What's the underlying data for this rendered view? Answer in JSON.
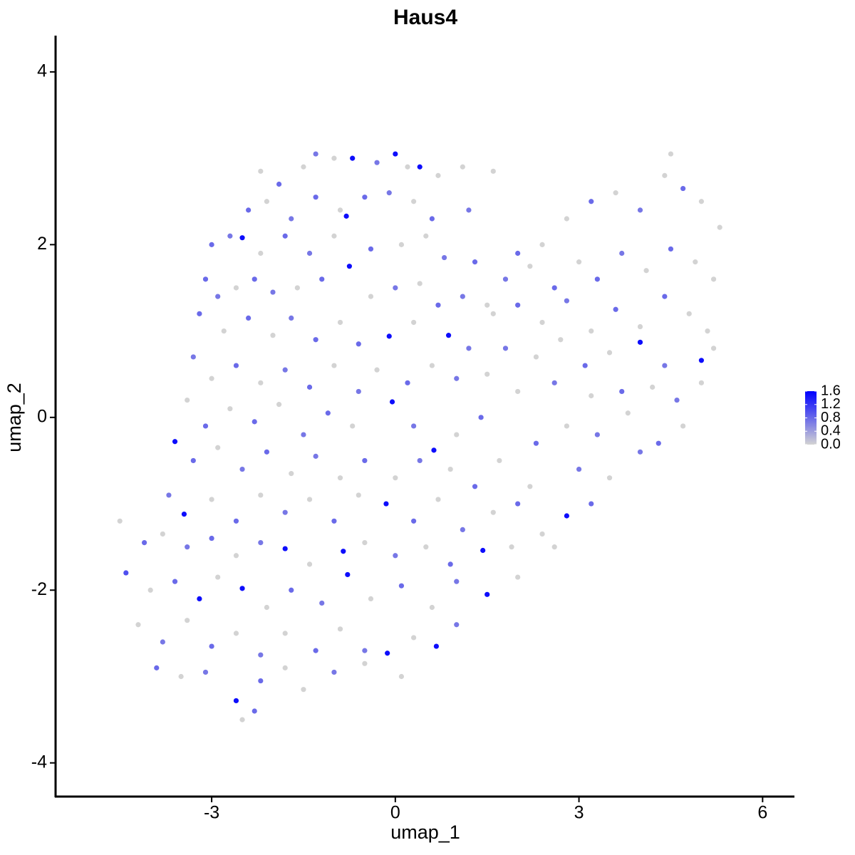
{
  "chart_data": {
    "type": "scatter",
    "title": "Haus4",
    "x_label": "umap_1",
    "y_label": "umap_2",
    "xlim": [
      -5.55,
      6.52
    ],
    "ylim": [
      -4.39,
      4.42
    ],
    "xticks": [
      -3,
      0,
      3,
      6
    ],
    "yticks": [
      -4,
      -2,
      0,
      2,
      4
    ],
    "color_low": "#d3d3d3",
    "color_high": "#0000ff",
    "colorlim": [
      0,
      1.6
    ],
    "colorbar_ticks": [
      {
        "value": 0,
        "label": "0.0"
      },
      0.4,
      0.8,
      1.2,
      1.6
    ],
    "x": [
      -2.2,
      -1.9,
      -1.5,
      -1.3,
      -1.0,
      -0.7,
      -0.3,
      0,
      0.2,
      0.4,
      0.7,
      1.1,
      1.6,
      -2.4,
      -2.1,
      -1.7,
      -1.3,
      -0.9,
      -0.5,
      -0.1,
      0.3,
      0.6,
      1.2,
      -3.0,
      -2.7,
      -2.5,
      -2.2,
      -1.8,
      -1.4,
      -1.0,
      -0.8,
      -0.4,
      0.1,
      0.5,
      0.8,
      1.3,
      -3.1,
      -2.9,
      -2.6,
      -2.3,
      -2.0,
      -1.6,
      -1.2,
      -0.75,
      -0.4,
      0,
      0.4,
      0.7,
      1.1,
      1.5,
      -3.2,
      -2.8,
      -2.4,
      -2.0,
      -1.7,
      -1.3,
      -0.9,
      -0.6,
      -0.1,
      0.3,
      0.87,
      1.2,
      -3.3,
      -3.0,
      -2.6,
      -2.2,
      -1.8,
      -1.4,
      -1.0,
      -0.6,
      -0.3,
      0.2,
      0.6,
      1.0,
      1.5,
      -3.4,
      -3.1,
      -2.7,
      -2.3,
      -1.9,
      -1.5,
      -1.1,
      -0.7,
      -0.05,
      0.3,
      0.63,
      1.0,
      1.4,
      -3.6,
      -3.3,
      -2.9,
      -2.5,
      -2.1,
      -1.7,
      -1.3,
      -0.9,
      -0.5,
      0,
      0.4,
      0.9,
      1.3,
      1.7,
      -3.7,
      -3.45,
      -3.0,
      -2.6,
      -2.2,
      -1.8,
      -1.4,
      -1.0,
      -0.6,
      -0.15,
      0.3,
      0.7,
      1.1,
      1.6,
      2.0,
      -4.5,
      -4.1,
      -3.8,
      -3.4,
      -3.0,
      -2.6,
      -2.2,
      -1.8,
      -1.4,
      -0.85,
      -0.5,
      0,
      0.5,
      0.9,
      1.43,
      1.9,
      2.4,
      -4.4,
      -4.0,
      -3.6,
      -3.2,
      -2.9,
      -2.5,
      -2.1,
      -1.7,
      -1.2,
      -0.78,
      -0.4,
      0.1,
      0.6,
      1.0,
      1.5,
      2.0,
      -4.2,
      -3.8,
      -3.4,
      -3.0,
      -2.6,
      -2.2,
      -1.8,
      -1.3,
      -0.9,
      -0.5,
      -0.13,
      0.3,
      0.67,
      1.0,
      -3.9,
      -3.5,
      -3.1,
      -2.6,
      -2.2,
      -1.8,
      -1.5,
      -1.0,
      -0.5,
      0.1,
      -2.3,
      -2.5,
      2.0,
      2.4,
      2.8,
      3.2,
      3.6,
      4.0,
      4.4,
      4.7,
      4.5,
      5.0,
      5.3,
      1.8,
      2.2,
      2.6,
      3.0,
      3.3,
      3.7,
      4.1,
      4.5,
      4.9,
      5.2,
      1.6,
      2.0,
      2.4,
      2.8,
      3.2,
      3.6,
      4.0,
      4.4,
      4.8,
      5.1,
      1.8,
      2.3,
      2.7,
      3.1,
      3.5,
      4.0,
      4.4,
      5.0,
      5.2,
      2.0,
      2.6,
      3.2,
      3.7,
      4.2,
      4.6,
      5.0,
      2.3,
      2.8,
      3.3,
      3.8,
      4.3,
      4.7,
      2.2,
      2.8,
      3.0,
      3.5,
      4.0,
      3.2,
      2.6
    ],
    "y": [
      2.85,
      2.7,
      2.9,
      3.05,
      3.0,
      3.0,
      2.95,
      3.05,
      2.9,
      2.9,
      2.8,
      2.9,
      2.85,
      2.4,
      2.5,
      2.3,
      2.55,
      2.4,
      2.55,
      2.6,
      2.5,
      2.3,
      2.4,
      2.0,
      2.1,
      2.08,
      1.9,
      2.1,
      1.9,
      2.1,
      2.33,
      1.95,
      2.0,
      2.1,
      1.85,
      1.8,
      1.6,
      1.4,
      1.5,
      1.6,
      1.45,
      1.5,
      1.6,
      1.75,
      1.4,
      1.5,
      1.55,
      1.3,
      1.4,
      1.3,
      1.2,
      1.0,
      1.15,
      0.95,
      1.15,
      0.9,
      1.1,
      0.85,
      0.94,
      1.1,
      0.95,
      0.8,
      0.7,
      0.45,
      0.6,
      0.4,
      0.55,
      0.35,
      0.6,
      0.3,
      0.55,
      0.4,
      0.6,
      0.45,
      0.5,
      0.2,
      -0.1,
      0.1,
      -0.05,
      0.15,
      -0.2,
      0.05,
      -0.1,
      0.18,
      -0.1,
      -0.38,
      -0.2,
      0.0,
      -0.28,
      -0.5,
      -0.35,
      -0.6,
      -0.4,
      -0.65,
      -0.45,
      -0.7,
      -0.5,
      -0.7,
      -0.5,
      -0.6,
      -0.8,
      -0.5,
      -0.9,
      -1.12,
      -0.95,
      -1.2,
      -0.9,
      -1.1,
      -0.95,
      -1.2,
      -0.9,
      -1.0,
      -1.2,
      -0.95,
      -1.3,
      -1.1,
      -1.0,
      -1.2,
      -1.45,
      -1.35,
      -1.5,
      -1.4,
      -1.6,
      -1.45,
      -1.52,
      -1.7,
      -1.55,
      -1.45,
      -1.6,
      -1.5,
      -1.7,
      -1.54,
      -1.5,
      -1.35,
      -1.8,
      -2.0,
      -1.9,
      -2.1,
      -1.85,
      -1.98,
      -2.2,
      -2.0,
      -2.15,
      -1.82,
      -2.1,
      -1.95,
      -2.2,
      -1.9,
      -2.05,
      -1.85,
      -2.4,
      -2.6,
      -2.35,
      -2.65,
      -2.5,
      -2.75,
      -2.5,
      -2.7,
      -2.45,
      -2.7,
      -2.73,
      -2.55,
      -2.65,
      -2.4,
      -2.9,
      -3.0,
      -2.95,
      -3.28,
      -3.05,
      -2.9,
      -3.15,
      -2.95,
      -2.85,
      -3.0,
      -3.4,
      -3.5,
      1.9,
      2.0,
      2.3,
      2.5,
      2.6,
      2.4,
      2.8,
      2.65,
      3.05,
      2.5,
      2.2,
      1.6,
      1.75,
      1.5,
      1.8,
      1.6,
      1.9,
      1.7,
      1.95,
      1.8,
      1.6,
      1.2,
      1.3,
      1.1,
      1.35,
      1.0,
      1.25,
      1.05,
      1.4,
      1.2,
      1.0,
      0.8,
      0.7,
      0.9,
      0.6,
      0.75,
      0.87,
      0.6,
      0.66,
      0.8,
      0.3,
      0.4,
      0.25,
      0.3,
      0.35,
      0.2,
      0.4,
      -0.3,
      -0.1,
      -0.2,
      0.05,
      -0.3,
      -0.1,
      -0.8,
      -1.14,
      -0.6,
      -0.7,
      -0.4,
      -1.0,
      -1.5
    ],
    "values": [
      0,
      0.8,
      0,
      0.7,
      0,
      1.5,
      0.7,
      1.5,
      0,
      1.5,
      0,
      0,
      0,
      0.8,
      0,
      0.7,
      0.8,
      0,
      0.8,
      0.7,
      0,
      0.8,
      0.7,
      0.8,
      0.7,
      1.5,
      0,
      0.8,
      0.7,
      0,
      1.5,
      0.8,
      0,
      0,
      0.7,
      0.8,
      0.8,
      0.7,
      0,
      0.8,
      0.7,
      0,
      0.8,
      1.5,
      0,
      0.7,
      0,
      0.8,
      0.7,
      0,
      0.8,
      0,
      0.8,
      0,
      0.7,
      0.8,
      0,
      0.8,
      1.5,
      0,
      1.5,
      0.7,
      0.7,
      0,
      0.8,
      0,
      0.7,
      0.8,
      0,
      0.7,
      0,
      0.8,
      0,
      0.7,
      0,
      0,
      0.8,
      0,
      0.8,
      0,
      0.7,
      0.8,
      0,
      1.5,
      0.7,
      1.5,
      0,
      0.8,
      1.5,
      0.8,
      0,
      0.7,
      0.8,
      0,
      0.7,
      0,
      0.8,
      0,
      0.7,
      0,
      0.8,
      0,
      0.7,
      1.5,
      0,
      0.8,
      0,
      0.7,
      0,
      0.8,
      0,
      1.5,
      0.8,
      0,
      0.7,
      0,
      0.8,
      0,
      0.8,
      0,
      0.7,
      0.8,
      0,
      0.7,
      1.5,
      0,
      1.5,
      0,
      0.7,
      0,
      0.8,
      1.5,
      0,
      0,
      1.0,
      0,
      0.8,
      1.5,
      0,
      1.5,
      0,
      0.8,
      0.7,
      1.5,
      0,
      0.8,
      0,
      0.7,
      1.5,
      0,
      0,
      0.7,
      0,
      0.8,
      0,
      0.7,
      0,
      0.8,
      0,
      0.7,
      1.5,
      0,
      1.5,
      0.7,
      0.8,
      0,
      0.7,
      1.5,
      0.8,
      0,
      0,
      0.7,
      0,
      0,
      0.8,
      0,
      0.8,
      0,
      0,
      0.8,
      0,
      0.7,
      0,
      0.8,
      0,
      0,
      0,
      0.7,
      0,
      0.8,
      0,
      0.8,
      0.7,
      0,
      0.8,
      0,
      0,
      0,
      0.8,
      0,
      0.7,
      0,
      0.8,
      0,
      0.8,
      0,
      0,
      0.7,
      0,
      0,
      0.8,
      0,
      1.5,
      0.7,
      1.5,
      0,
      0,
      0.7,
      0,
      0.8,
      0,
      0.7,
      0,
      0.8,
      0,
      0.7,
      0,
      0.8,
      0,
      0,
      1.5,
      0.7,
      0,
      0.7,
      0.8,
      0
    ]
  }
}
